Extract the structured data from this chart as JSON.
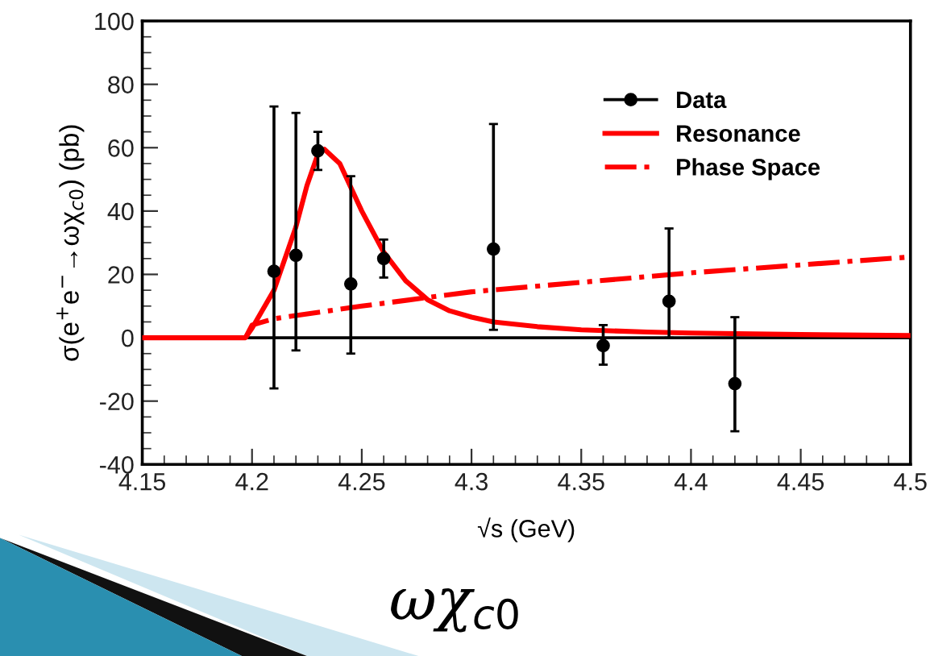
{
  "chart_data": {
    "type": "scatter",
    "xlabel": "√s (GeV)",
    "ylabel": "σ(e$^{+}$e$^{−}$→ωχ$_{c0}$) (pb)",
    "xlim": [
      4.15,
      4.5
    ],
    "xticks": [
      4.15,
      4.2,
      4.25,
      4.3,
      4.35,
      4.4,
      4.45,
      4.5
    ],
    "ylim": [
      -40,
      100
    ],
    "yticks": [
      -40,
      -20,
      0,
      20,
      40,
      60,
      80,
      100
    ],
    "legend": "top right",
    "grid": false,
    "series": [
      {
        "name": "Data",
        "color": "#000000",
        "marker": "circle",
        "x": [
          4.21,
          4.22,
          4.23,
          4.245,
          4.26,
          4.31,
          4.36,
          4.39,
          4.42
        ],
        "values": [
          21,
          26,
          59,
          17,
          25,
          28,
          -2.5,
          11.5,
          -14.5
        ],
        "errors": [
          [
            -16,
            73
          ],
          [
            -4,
            71
          ],
          [
            53,
            65
          ],
          [
            -5,
            51
          ],
          [
            19,
            31
          ],
          [
            2.5,
            67.5
          ],
          [
            -8.5,
            4
          ],
          [
            0,
            34.5
          ],
          [
            -29.5,
            6.5
          ]
        ]
      },
      {
        "name": "Resonance",
        "type": "line",
        "color": "#ff0000",
        "line_style": "solid",
        "x": [
          4.15,
          4.197,
          4.2,
          4.21,
          4.22,
          4.225,
          4.23,
          4.233,
          4.24,
          4.25,
          4.26,
          4.27,
          4.28,
          4.29,
          4.3,
          4.31,
          4.33,
          4.35,
          4.38,
          4.4,
          4.45,
          4.5
        ],
        "values": [
          0,
          0,
          3,
          15,
          35,
          48,
          58,
          59.5,
          55,
          40,
          27,
          18,
          12,
          8.5,
          6.5,
          5,
          3.5,
          2.5,
          1.8,
          1.5,
          1,
          0.7
        ]
      },
      {
        "name": "Phase Space",
        "type": "line",
        "color": "#ff0000",
        "line_style": "dashdot",
        "x": [
          4.197,
          4.2,
          4.21,
          4.25,
          4.3,
          4.35,
          4.4,
          4.45,
          4.5
        ],
        "values": [
          0,
          4,
          6,
          10,
          14.5,
          17.5,
          20.5,
          23,
          25.5
        ]
      }
    ],
    "ref_lines": [
      {
        "axis": "y",
        "value": 0,
        "color": "#000000"
      }
    ],
    "annotations": [
      "ωχ$_{c0}$"
    ]
  }
}
